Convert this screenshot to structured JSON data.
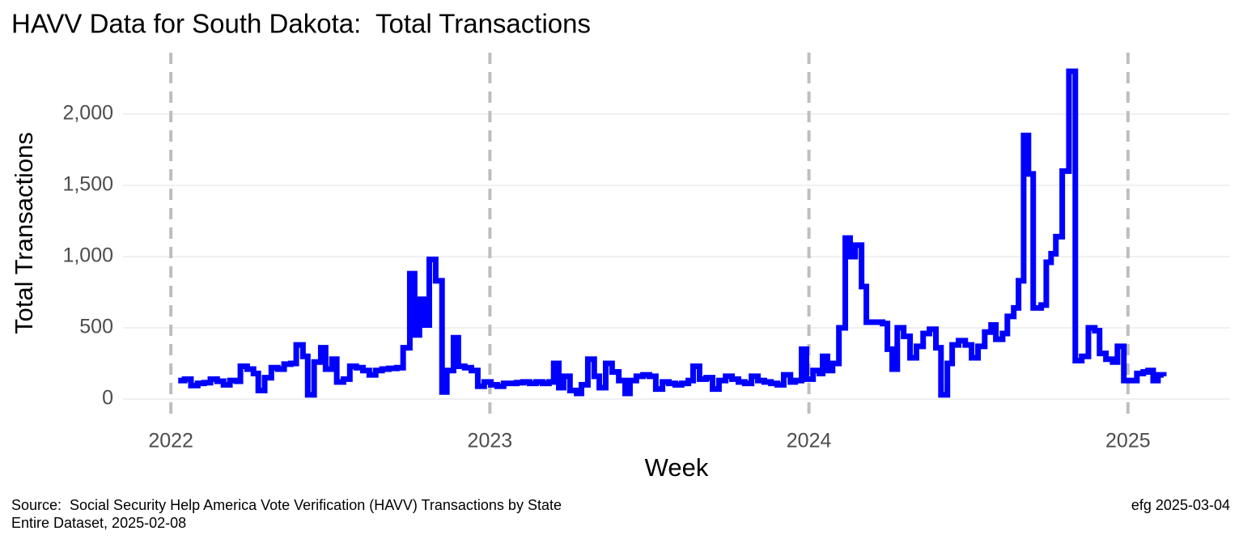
{
  "chart_data": {
    "type": "step",
    "title": "HAVV Data for South Dakota:  Total Transactions",
    "x_label": "Week",
    "y_label": "Total Transactions",
    "caption_left": [
      "Source:  Social Security Help America Vote Verification (HAVV) Transactions by State",
      "Entire Dataset, 2025-02-08"
    ],
    "caption_right": "efg 2025-03-04",
    "grid": true,
    "xlim": [
      2021.85,
      2025.32
    ],
    "xticks": [
      2022,
      2023,
      2024,
      2025
    ],
    "ylim": [
      -125,
      2460
    ],
    "yticks": [
      0,
      500,
      {
        "value": 1000,
        "label": "1,000"
      },
      {
        "value": 1500,
        "label": "1,500"
      },
      {
        "value": 2000,
        "label": "2,000"
      }
    ],
    "series": [
      {
        "name": "Total Transactions",
        "color": "#0000ff",
        "x": [
          2022.023,
          2022.043,
          2022.063,
          2022.084,
          2022.104,
          2022.124,
          2022.145,
          2022.165,
          2022.185,
          2022.206,
          2022.218,
          2022.239,
          2022.259,
          2022.274,
          2022.294,
          2022.315,
          2022.335,
          2022.355,
          2022.376,
          2022.393,
          2022.414,
          2022.429,
          2022.449,
          2022.47,
          2022.485,
          2022.505,
          2022.52,
          2022.541,
          2022.561,
          2022.581,
          2022.602,
          2022.622,
          2022.642,
          2022.662,
          2022.683,
          2022.708,
          2022.728,
          2022.749,
          2022.764,
          2022.779,
          2022.794,
          2022.81,
          2022.83,
          2022.85,
          2022.865,
          2022.886,
          2022.901,
          2022.921,
          2022.942,
          2022.962,
          2022.982,
          2023.003,
          2023.023,
          2023.043,
          2023.063,
          2023.084,
          2023.104,
          2023.124,
          2023.145,
          2023.165,
          2023.185,
          2023.2,
          2023.216,
          2023.231,
          2023.251,
          2023.272,
          2023.287,
          2023.307,
          2023.327,
          2023.343,
          2023.363,
          2023.383,
          2023.404,
          2023.424,
          2023.439,
          2023.459,
          2023.48,
          2023.5,
          2023.52,
          2023.541,
          2023.561,
          2023.581,
          2023.601,
          2023.622,
          2023.637,
          2023.657,
          2023.678,
          2023.698,
          2023.718,
          2023.739,
          2023.759,
          2023.779,
          2023.799,
          2023.82,
          2023.84,
          2023.86,
          2023.881,
          2023.901,
          2023.921,
          2023.942,
          2023.957,
          2023.977,
          2023.992,
          2024.013,
          2024.033,
          2024.043,
          2024.058,
          2024.074,
          2024.094,
          2024.114,
          2024.129,
          2024.145,
          2024.165,
          2024.18,
          2024.206,
          2024.231,
          2024.246,
          2024.261,
          2024.277,
          2024.297,
          2024.317,
          2024.337,
          2024.358,
          2024.378,
          2024.398,
          2024.414,
          2024.434,
          2024.449,
          2024.469,
          2024.49,
          2024.51,
          2024.53,
          2024.551,
          2024.571,
          2024.586,
          2024.607,
          2024.622,
          2024.642,
          2024.657,
          2024.673,
          2024.688,
          2024.703,
          2024.728,
          2024.744,
          2024.759,
          2024.774,
          2024.794,
          2024.815,
          2024.835,
          2024.855,
          2024.876,
          2024.896,
          2024.911,
          2024.931,
          2024.952,
          2024.967,
          2024.987,
          2025.008,
          2025.028,
          2025.048,
          2025.063,
          2025.079,
          2025.094,
          2025.112
        ],
        "values": [
          130,
          140,
          95,
          110,
          115,
          140,
          125,
          100,
          130,
          125,
          230,
          210,
          180,
          60,
          150,
          220,
          210,
          245,
          250,
          380,
          300,
          30,
          260,
          360,
          210,
          280,
          120,
          140,
          230,
          220,
          200,
          170,
          200,
          210,
          215,
          220,
          360,
          880,
          450,
          700,
          520,
          980,
          830,
          50,
          200,
          430,
          230,
          220,
          200,
          90,
          120,
          100,
          90,
          110,
          110,
          115,
          120,
          110,
          120,
          110,
          120,
          250,
          80,
          160,
          60,
          40,
          100,
          280,
          160,
          80,
          250,
          190,
          130,
          40,
          130,
          160,
          170,
          160,
          70,
          120,
          110,
          100,
          110,
          130,
          230,
          140,
          150,
          70,
          130,
          160,
          140,
          120,
          110,
          160,
          130,
          120,
          110,
          100,
          170,
          120,
          130,
          350,
          140,
          200,
          180,
          300,
          200,
          250,
          500,
          1130,
          1000,
          1080,
          790,
          540,
          540,
          530,
          350,
          210,
          500,
          440,
          290,
          370,
          460,
          490,
          360,
          30,
          250,
          380,
          410,
          380,
          290,
          370,
          470,
          520,
          420,
          460,
          580,
          640,
          830,
          1850,
          1580,
          640,
          660,
          960,
          1020,
          1140,
          1600,
          2300,
          270,
          300,
          500,
          480,
          320,
          280,
          260,
          370,
          130,
          130,
          180,
          190,
          200,
          130,
          170,
          160
        ]
      }
    ]
  }
}
